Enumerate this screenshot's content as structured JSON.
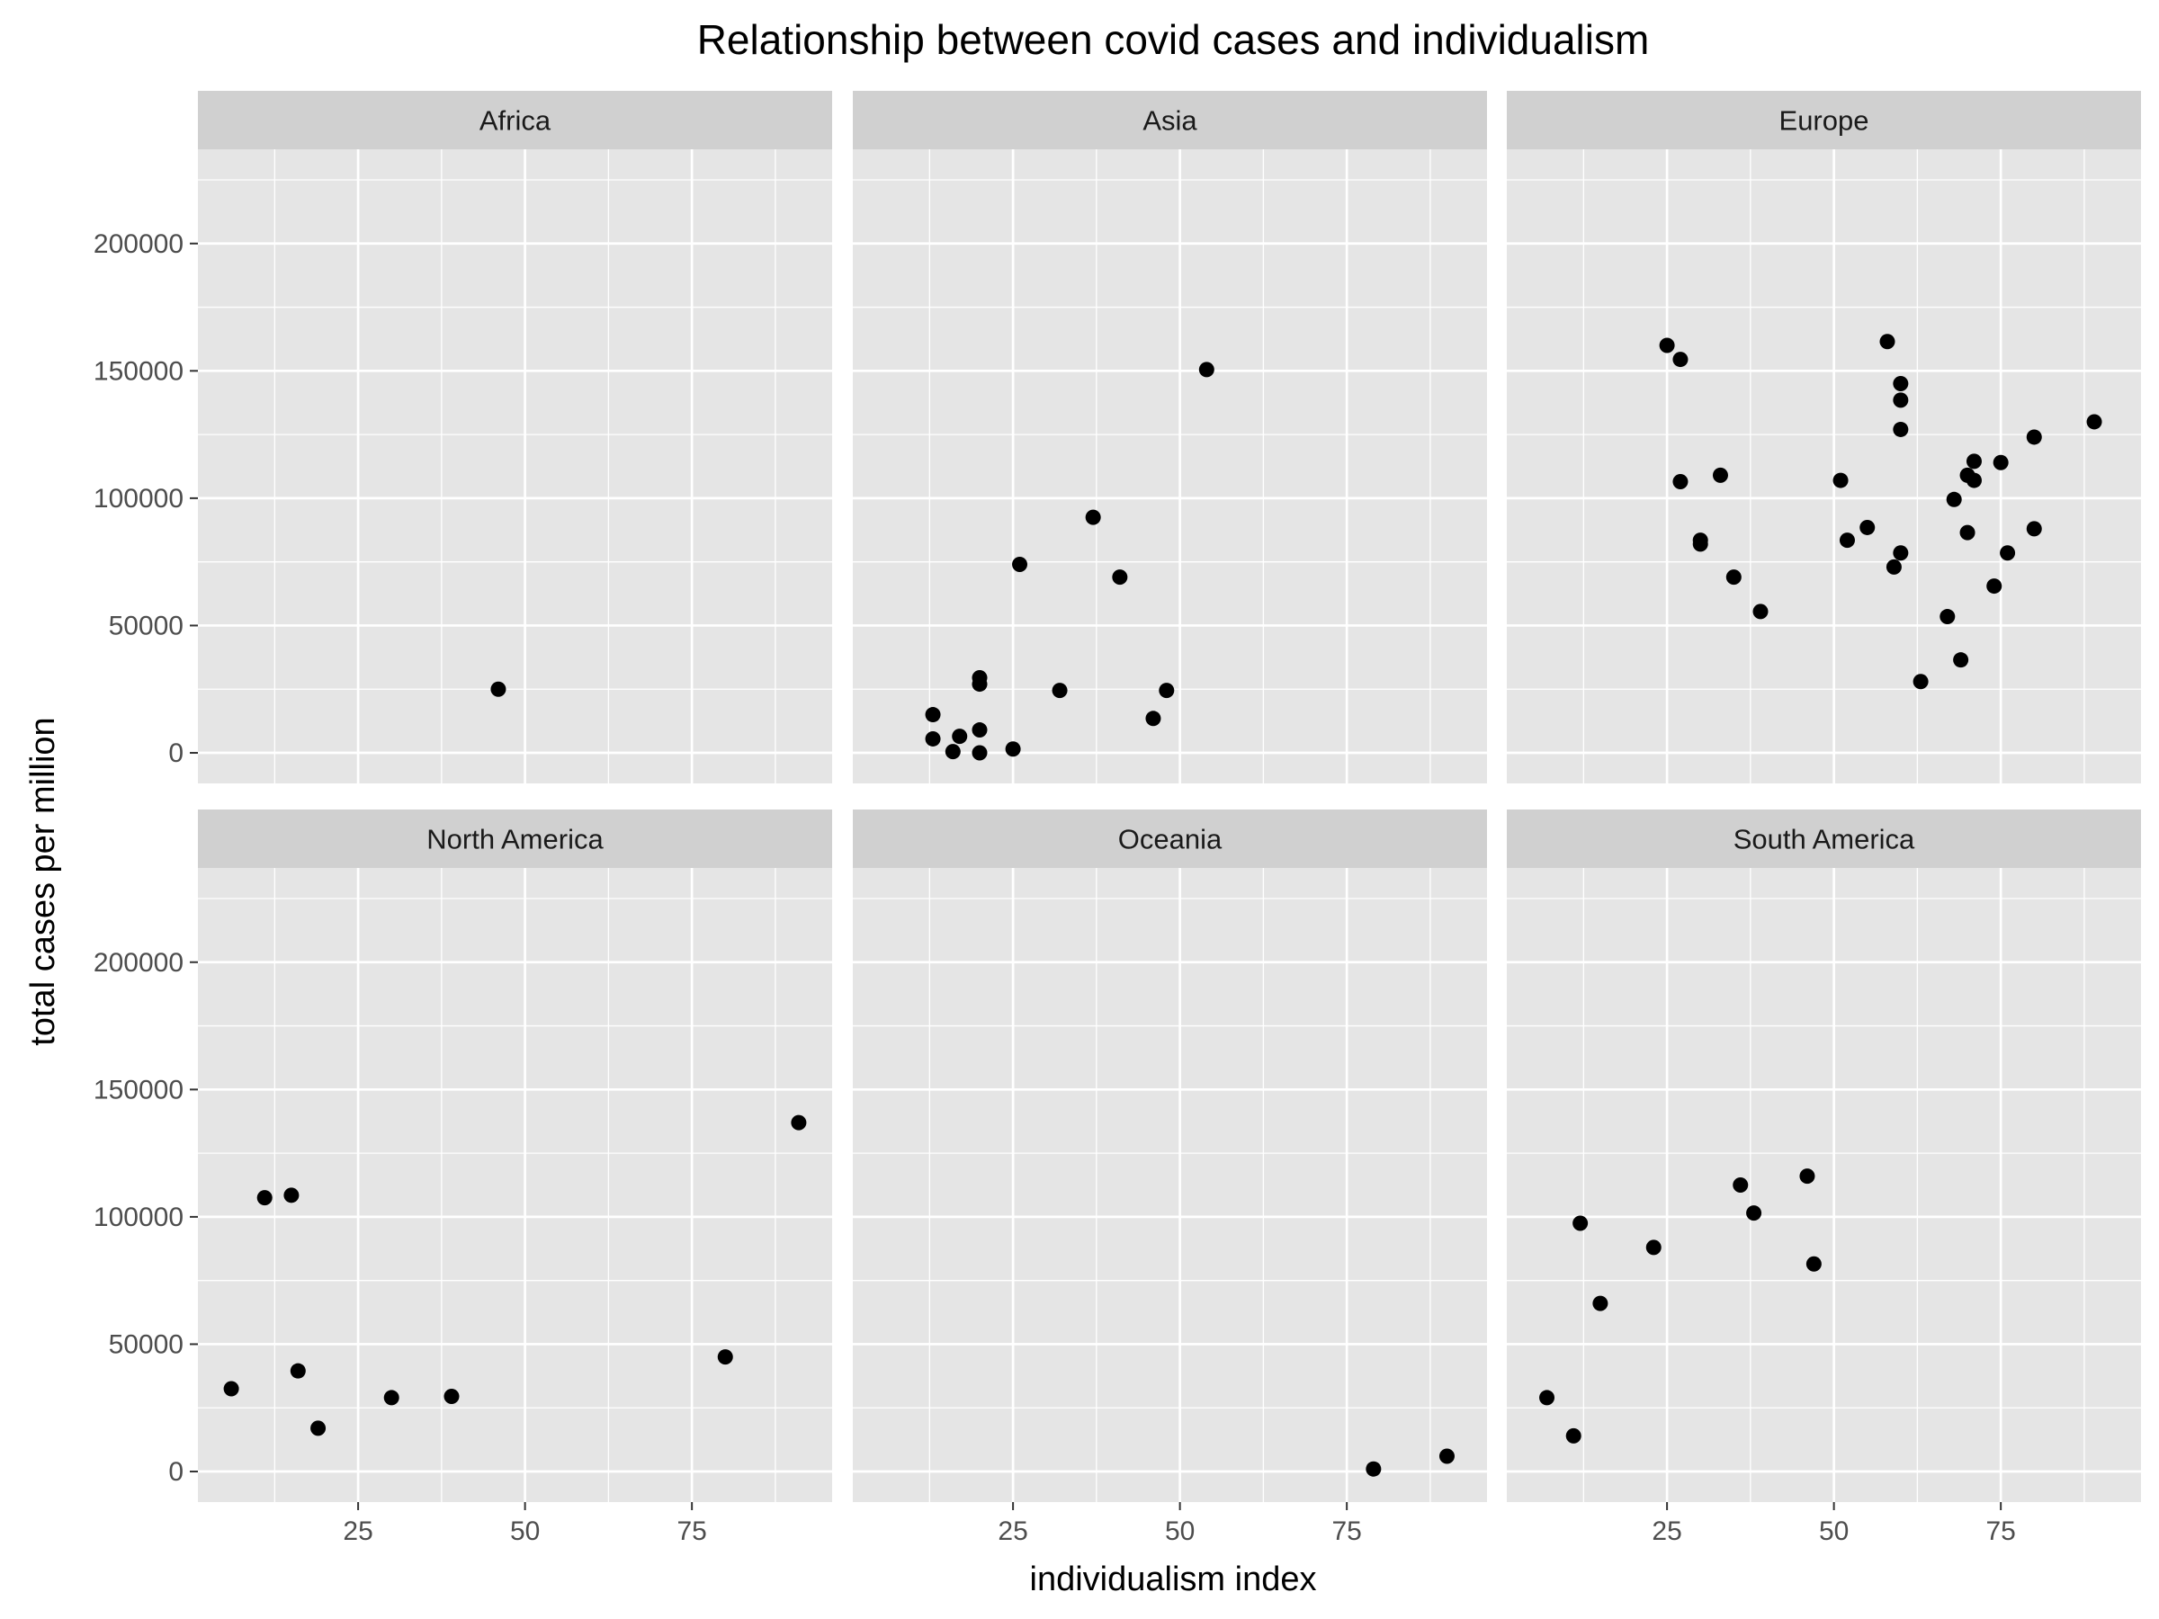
{
  "chart_data": {
    "type": "scatter",
    "title": "Relationship between covid cases and individualism",
    "xlabel": "individualism index",
    "ylabel": "total cases per million",
    "xlim": [
      1,
      96
    ],
    "ylim": [
      -12000,
      237000
    ],
    "x_ticks": [
      25,
      50,
      75
    ],
    "y_ticks": [
      0,
      50000,
      100000,
      150000,
      200000
    ],
    "colors": {
      "panel_bg": "#e5e5e5",
      "strip_bg": "#d0d0d0",
      "grid": "#ffffff",
      "point": "#000000"
    },
    "panels": [
      {
        "name": "Africa",
        "points": [
          [
            46,
            25000
          ]
        ]
      },
      {
        "name": "Asia",
        "points": [
          [
            13,
            15000
          ],
          [
            13,
            5500
          ],
          [
            16,
            500
          ],
          [
            17,
            6500
          ],
          [
            20,
            29500
          ],
          [
            20,
            27000
          ],
          [
            20,
            9000
          ],
          [
            20,
            0
          ],
          [
            25,
            1500
          ],
          [
            26,
            74000
          ],
          [
            32,
            24500
          ],
          [
            37,
            92500
          ],
          [
            41,
            69000
          ],
          [
            46,
            13500
          ],
          [
            48,
            24500
          ],
          [
            54,
            150500
          ]
        ]
      },
      {
        "name": "Europe",
        "points": [
          [
            25,
            160000
          ],
          [
            27,
            154500
          ],
          [
            27,
            106500
          ],
          [
            30,
            83500
          ],
          [
            30,
            82000
          ],
          [
            33,
            109000
          ],
          [
            35,
            69000
          ],
          [
            39,
            55500
          ],
          [
            51,
            107000
          ],
          [
            52,
            83500
          ],
          [
            55,
            88500
          ],
          [
            58,
            161500
          ],
          [
            59,
            73000
          ],
          [
            60,
            145000
          ],
          [
            60,
            138500
          ],
          [
            60,
            127000
          ],
          [
            60,
            78500
          ],
          [
            63,
            28000
          ],
          [
            67,
            53500
          ],
          [
            68,
            99500
          ],
          [
            69,
            36500
          ],
          [
            70,
            109000
          ],
          [
            70,
            86500
          ],
          [
            71,
            114500
          ],
          [
            71,
            107000
          ],
          [
            74,
            65500
          ],
          [
            75,
            114000
          ],
          [
            76,
            78500
          ],
          [
            80,
            124000
          ],
          [
            80,
            88000
          ],
          [
            89,
            130000
          ]
        ]
      },
      {
        "name": "North America",
        "points": [
          [
            6,
            32500
          ],
          [
            11,
            107500
          ],
          [
            15,
            108500
          ],
          [
            16,
            39500
          ],
          [
            19,
            17000
          ],
          [
            30,
            29000
          ],
          [
            39,
            29500
          ],
          [
            80,
            45000
          ],
          [
            91,
            137000
          ]
        ]
      },
      {
        "name": "Oceania",
        "points": [
          [
            79,
            1000
          ],
          [
            90,
            6000
          ]
        ]
      },
      {
        "name": "South America",
        "points": [
          [
            7,
            29000
          ],
          [
            11,
            14000
          ],
          [
            12,
            97500
          ],
          [
            15,
            66000
          ],
          [
            23,
            88000
          ],
          [
            36,
            112500
          ],
          [
            38,
            101500
          ],
          [
            46,
            116000
          ],
          [
            47,
            81500
          ]
        ]
      }
    ]
  }
}
